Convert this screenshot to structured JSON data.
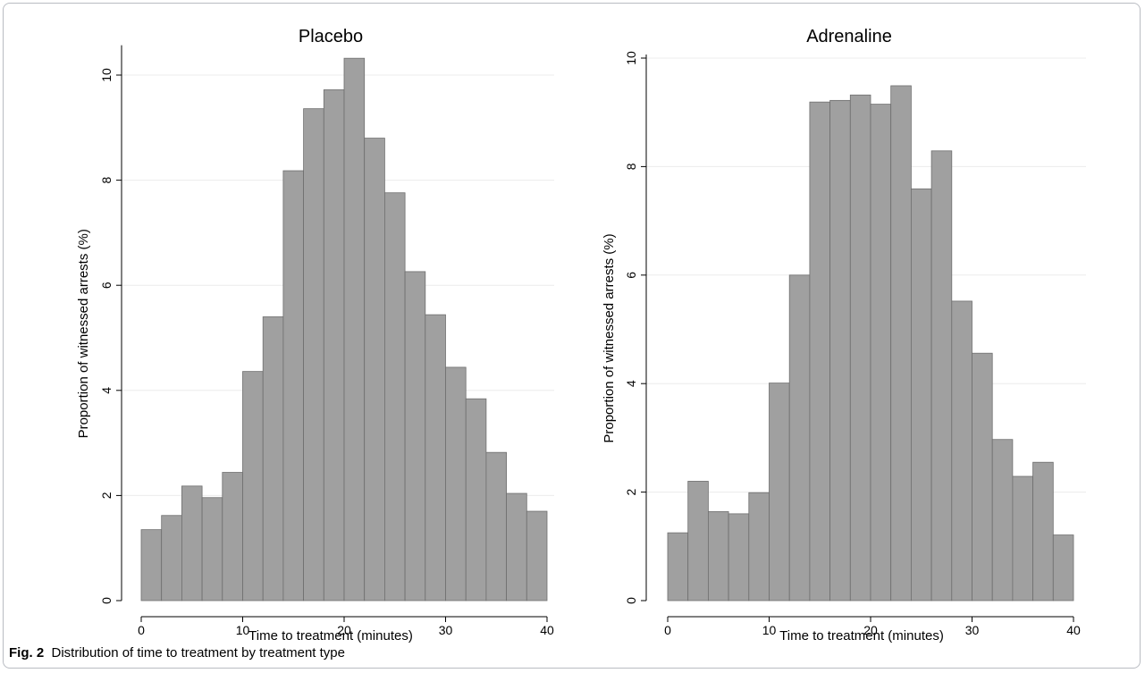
{
  "caption": {
    "label": "Fig. 2",
    "text": "Distribution of time to treatment by treatment type"
  },
  "colors": {
    "bar_fill": "#a0a0a0",
    "bar_stroke": "#6e6e6e",
    "grid": "#ececec",
    "axis": "#000000"
  },
  "chart_data": [
    {
      "type": "bar",
      "title": "Placebo",
      "xlabel": "Time to treatment (minutes)",
      "ylabel": "Proportion of witnessed arrests (%)",
      "xlim": [
        0,
        40
      ],
      "ylim": [
        0,
        10.5
      ],
      "xticks": [
        0,
        10,
        20,
        30,
        40
      ],
      "yticks": [
        0,
        2,
        4,
        6,
        8,
        10
      ],
      "grid": true,
      "bin_width": 2,
      "bins": [
        0,
        2,
        4,
        6,
        8,
        10,
        12,
        14,
        16,
        18,
        20,
        22,
        24,
        26,
        28,
        30,
        32,
        34,
        36,
        38
      ],
      "values": [
        1.35,
        1.62,
        2.18,
        1.96,
        2.44,
        4.36,
        5.4,
        8.18,
        9.36,
        9.72,
        10.32,
        8.8,
        7.76,
        6.26,
        5.44,
        4.44,
        3.84,
        2.82,
        2.04,
        1.7
      ]
    },
    {
      "type": "bar",
      "title": "Adrenaline",
      "xlabel": "Time to treatment (minutes)",
      "ylabel": "Proportion of witnessed arrests (%)",
      "xlim": [
        0,
        40
      ],
      "ylim": [
        0,
        10
      ],
      "xticks": [
        0,
        10,
        20,
        30,
        40
      ],
      "yticks": [
        0,
        2,
        4,
        6,
        8,
        10
      ],
      "grid": true,
      "bin_width": 2,
      "bins": [
        0,
        2,
        4,
        6,
        8,
        10,
        12,
        14,
        16,
        18,
        20,
        22,
        24,
        26,
        28,
        30,
        32,
        34,
        36,
        38
      ],
      "values": [
        1.25,
        2.2,
        1.64,
        1.6,
        1.99,
        4.01,
        6.0,
        9.19,
        9.22,
        9.32,
        9.15,
        9.49,
        7.59,
        8.29,
        5.52,
        4.56,
        2.97,
        2.29,
        2.55,
        1.21
      ]
    }
  ]
}
